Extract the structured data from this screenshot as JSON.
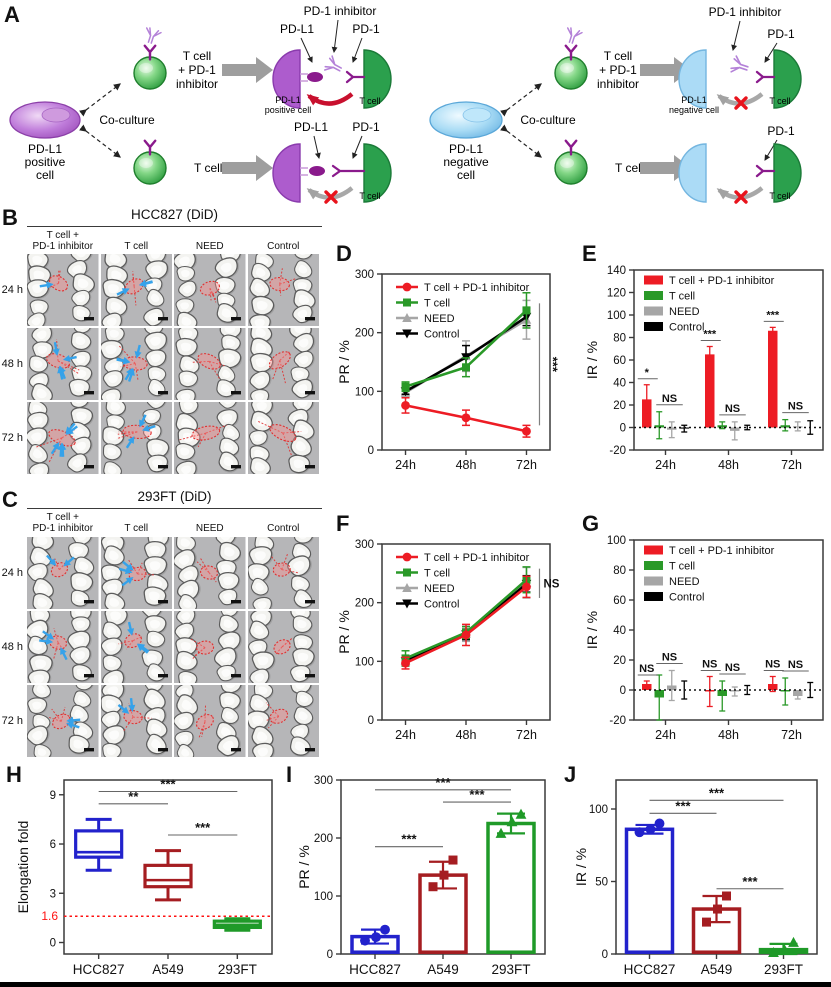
{
  "panels": {
    "A": "A",
    "B": "B",
    "C": "C",
    "D": "D",
    "E": "E",
    "F": "F",
    "G": "G",
    "H": "H",
    "I": "I",
    "J": "J"
  },
  "panelA": {
    "left": {
      "cell_lines": [
        "PD-L1",
        "positive",
        "cell"
      ],
      "coculture": "Co-culture",
      "tcell_inh_lines": [
        "T cell",
        "+ PD-1",
        "inhibitor"
      ],
      "tcell": "T cell",
      "top": {
        "inhibitor": "PD-1 inhibitor",
        "pdl1": "PD-L1",
        "pd1": "PD-1",
        "cell_small": [
          "PD-L1",
          "positive cell"
        ],
        "tcell_small": "T cell"
      },
      "bottom": {
        "pdl1": "PD-L1",
        "pd1": "PD-1",
        "tcell_small": "T cell"
      }
    },
    "right": {
      "cell_lines": [
        "PD-L1",
        "negative",
        "cell"
      ],
      "coculture": "Co-culture",
      "tcell_inh_lines": [
        "T cell",
        "+ PD-1",
        "inhibitor"
      ],
      "tcell": "T cell",
      "top": {
        "inhibitor": "PD-1 inhibitor",
        "pd1": "PD-1",
        "cell_small": [
          "PD-L1",
          "negative cell"
        ],
        "tcell_small": "T cell"
      },
      "bottom": {
        "pd1": "PD-1",
        "tcell_small": "T cell"
      }
    }
  },
  "panelB": {
    "title": "HCC827 (DiD)",
    "col_labels": [
      [
        "T cell +",
        "PD-1 inhibitor"
      ],
      [
        "T cell",
        ""
      ],
      [
        "NEED",
        ""
      ],
      [
        "Control",
        ""
      ]
    ],
    "row_labels": [
      "24 h",
      "48 h",
      "72 h"
    ],
    "arrow_counts": [
      [
        1,
        3,
        0,
        0
      ],
      [
        4,
        5,
        0,
        0
      ],
      [
        5,
        3,
        0,
        0
      ]
    ]
  },
  "panelC": {
    "title": "293FT (DiD)",
    "col_labels": [
      [
        "T cell +",
        "PD-1 inhibitor"
      ],
      [
        "T cell",
        ""
      ],
      [
        "NEED",
        ""
      ],
      [
        "Control",
        ""
      ]
    ],
    "row_labels": [
      "24 h",
      "48 h",
      "72 h"
    ],
    "arrow_counts": [
      [
        2,
        3,
        0,
        0
      ],
      [
        3,
        3,
        0,
        0
      ],
      [
        2,
        2,
        0,
        0
      ]
    ]
  },
  "chart_data": [
    {
      "id": "D",
      "type": "line",
      "ylabel": "PR / %",
      "x_labels": [
        "24h",
        "48h",
        "72h"
      ],
      "ylim": [
        0,
        300
      ],
      "yticks": [
        0,
        100,
        200,
        300
      ],
      "frame": true,
      "legend_position": "top-left",
      "series": [
        {
          "name": "T cell + PD-1 inhibitor",
          "color": "#ed1c24",
          "marker": "circle",
          "values": [
            76,
            55,
            32
          ],
          "errors": [
            13,
            13,
            10
          ]
        },
        {
          "name": "T cell",
          "color": "#2a9928",
          "marker": "square",
          "values": [
            108,
            141,
            238
          ],
          "errors": [
            8,
            16,
            30
          ]
        },
        {
          "name": "NEED",
          "color": "#a6a6a6",
          "marker": "triangle",
          "values": [
            98,
            160,
            222
          ],
          "errors": [
            8,
            26,
            33
          ]
        },
        {
          "name": "Control",
          "color": "#000000",
          "marker": "triangle-down",
          "values": [
            100,
            158,
            227
          ],
          "errors": [
            5,
            20,
            15
          ]
        }
      ],
      "sig_bracket": {
        "label": "***",
        "rotated": true,
        "from_value": 250,
        "to_value": 42
      }
    },
    {
      "id": "E",
      "type": "bar",
      "ylabel": "IR / %",
      "x_labels": [
        "24h",
        "48h",
        "72h"
      ],
      "ylim": [
        -20,
        140
      ],
      "yticks": [
        -20,
        0,
        20,
        40,
        60,
        80,
        100,
        120,
        140
      ],
      "zero_line": true,
      "frame": true,
      "series": [
        {
          "name": "T cell + PD-1 inhibitor",
          "color": "#ed1c24",
          "values": [
            25,
            65,
            86
          ],
          "errors": [
            13,
            7,
            3
          ]
        },
        {
          "name": "T cell",
          "color": "#2a9928",
          "values": [
            2,
            2,
            2
          ],
          "errors": [
            12,
            3,
            5
          ]
        },
        {
          "name": "NEED",
          "color": "#a6a6a6",
          "values": [
            -2,
            -3,
            1
          ],
          "errors": [
            7,
            8,
            4
          ]
        },
        {
          "name": "Control",
          "color": "#000000",
          "values": [
            -1,
            0,
            0
          ],
          "errors": [
            3,
            2,
            6
          ]
        }
      ],
      "sig_first": [
        "*",
        "***",
        "***"
      ],
      "sig_pair": [
        "NS",
        "NS",
        "NS"
      ]
    },
    {
      "id": "F",
      "type": "line",
      "ylabel": "PR / %",
      "x_labels": [
        "24h",
        "48h",
        "72h"
      ],
      "ylim": [
        0,
        300
      ],
      "yticks": [
        0,
        100,
        200,
        300
      ],
      "frame": true,
      "legend_position": "top-left",
      "series": [
        {
          "name": "T cell + PD-1 inhibitor",
          "color": "#ed1c24",
          "marker": "circle",
          "values": [
            97,
            145,
            227
          ],
          "errors": [
            10,
            18,
            18
          ]
        },
        {
          "name": "T cell",
          "color": "#2a9928",
          "marker": "square",
          "values": [
            105,
            149,
            239
          ],
          "errors": [
            13,
            10,
            22
          ]
        },
        {
          "name": "NEED",
          "color": "#a6a6a6",
          "marker": "triangle",
          "values": [
            101,
            147,
            234
          ],
          "errors": [
            9,
            13,
            26
          ]
        },
        {
          "name": "Control",
          "color": "#000000",
          "marker": "triangle-down",
          "values": [
            100,
            146,
            232
          ],
          "errors": [
            7,
            9,
            14
          ]
        }
      ],
      "sig_bracket": {
        "label": "NS",
        "rotated": false,
        "from_value": 258,
        "to_value": 208
      }
    },
    {
      "id": "G",
      "type": "bar",
      "ylabel": "IR / %",
      "x_labels": [
        "24h",
        "48h",
        "72h"
      ],
      "ylim": [
        -20,
        100
      ],
      "yticks": [
        -20,
        0,
        20,
        40,
        60,
        80,
        100
      ],
      "zero_line": true,
      "frame": true,
      "series": [
        {
          "name": "T cell + PD-1 inhibitor",
          "color": "#ed1c24",
          "values": [
            4,
            -1,
            4
          ],
          "errors": [
            2,
            10,
            5
          ]
        },
        {
          "name": "T cell",
          "color": "#2a9928",
          "values": [
            -5,
            -4,
            -1
          ],
          "errors": [
            15,
            10,
            9
          ]
        },
        {
          "name": "NEED",
          "color": "#a6a6a6",
          "values": [
            3,
            -1,
            -4
          ],
          "errors": [
            10,
            3,
            2
          ]
        },
        {
          "name": "Control",
          "color": "#000000",
          "values": [
            0,
            0,
            0
          ],
          "errors": [
            6,
            3,
            5
          ]
        }
      ],
      "sig_first": [
        "NS",
        "NS",
        "NS"
      ],
      "sig_pair": [
        "NS",
        "NS",
        "NS"
      ]
    },
    {
      "id": "H",
      "type": "box",
      "ylabel": "Elongation fold",
      "categories": [
        "HCC827",
        "A549",
        "293FT"
      ],
      "ylim": [
        -0.7,
        9.9
      ],
      "yticks": [
        0,
        3,
        6,
        9
      ],
      "frame": true,
      "ref_line": {
        "value": 1.6,
        "label": "1.6",
        "color": "#ff1111"
      },
      "boxes": [
        {
          "name": "HCC827",
          "color": "#2222cc",
          "low": 4.4,
          "q1": 5.2,
          "median": 5.5,
          "q3": 6.8,
          "high": 7.5
        },
        {
          "name": "A549",
          "color": "#a51d21",
          "low": 2.6,
          "q1": 3.4,
          "median": 3.8,
          "q3": 4.7,
          "high": 5.6
        },
        {
          "name": "293FT",
          "color": "#1f9a28",
          "low": 0.75,
          "q1": 0.92,
          "median": 1.08,
          "q3": 1.3,
          "high": 1.45
        }
      ],
      "significance": [
        {
          "from": 0,
          "to": 2,
          "label": "***",
          "y": 9.2
        },
        {
          "from": 0,
          "to": 1,
          "label": "**",
          "y": 8.45
        },
        {
          "from": 1,
          "to": 2,
          "label": "***",
          "y": 6.55
        }
      ]
    },
    {
      "id": "I",
      "type": "bar-scatter",
      "ylabel": "PR / %",
      "categories": [
        "HCC827",
        "A549",
        "293FT"
      ],
      "ylim": [
        0,
        300
      ],
      "yticks": [
        0,
        100,
        200,
        300
      ],
      "frame": true,
      "bars": [
        {
          "name": "HCC827",
          "color": "#2222cc",
          "marker": "circle",
          "value": 30,
          "error": 12,
          "points": [
            23,
            29,
            42
          ]
        },
        {
          "name": "A549",
          "color": "#a51d21",
          "marker": "square",
          "value": 136,
          "error": 23,
          "points": [
            116,
            136,
            162
          ]
        },
        {
          "name": "293FT",
          "color": "#1f9a28",
          "marker": "triangle",
          "value": 225,
          "error": 17,
          "points": [
            208,
            228,
            241
          ]
        }
      ],
      "significance": [
        {
          "from": 0,
          "to": 2,
          "label": "***",
          "y": 283
        },
        {
          "from": 1,
          "to": 2,
          "label": "***",
          "y": 262
        },
        {
          "from": 0,
          "to": 1,
          "label": "***",
          "y": 185
        }
      ]
    },
    {
      "id": "J",
      "type": "bar-scatter",
      "ylabel": "IR / %",
      "categories": [
        "HCC827",
        "A549",
        "293FT"
      ],
      "ylim": [
        0,
        120
      ],
      "yticks": [
        0,
        50,
        100
      ],
      "frame": true,
      "bars": [
        {
          "name": "HCC827",
          "color": "#2222cc",
          "marker": "circle",
          "value": 86,
          "error": 3,
          "points": [
            84,
            86,
            90
          ]
        },
        {
          "name": "A549",
          "color": "#a51d21",
          "marker": "square",
          "value": 31,
          "error": 9,
          "points": [
            22,
            31,
            40
          ]
        },
        {
          "name": "293FT",
          "color": "#1f9a28",
          "marker": "triangle",
          "value": 3,
          "error": 4,
          "points": [
            1,
            3,
            8
          ]
        }
      ],
      "significance": [
        {
          "from": 0,
          "to": 2,
          "label": "***",
          "y": 106
        },
        {
          "from": 0,
          "to": 1,
          "label": "***",
          "y": 97
        },
        {
          "from": 1,
          "to": 2,
          "label": "***",
          "y": 45
        }
      ]
    }
  ]
}
